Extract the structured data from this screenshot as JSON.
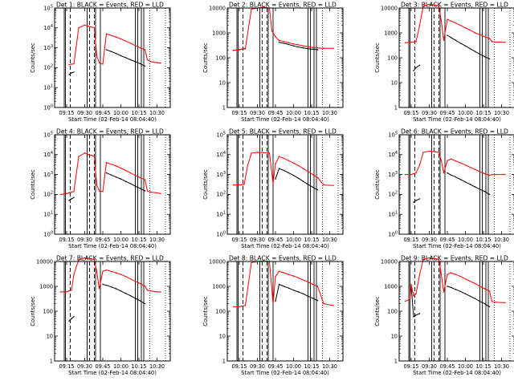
{
  "title_template": "Det {n}: BLACK = Events, RED = LLD",
  "title_prefix": "Det ",
  "title_suffix": ": BLACK = Events, RED = LLD",
  "xlabel": "Start Time (02-Feb-14 08:04:40)",
  "ylabel": "Counts/sec",
  "x_tick_labels": [
    "09:15",
    "09:30",
    "09:45",
    "10:00",
    "10:15",
    "10:30"
  ],
  "colors": {
    "events": "#000000",
    "lld": "#ff0000",
    "background": "#ffffff"
  },
  "chart_data": [
    {
      "type": "line",
      "detector": "1",
      "yscale": "log",
      "ylim": [
        1,
        100000
      ],
      "ytick_format": "exponent",
      "ytick_labels": [
        "10^0",
        "10^1",
        "10^2",
        "10^3",
        "10^4",
        "10^5"
      ],
      "x": [
        "09:10",
        "09:15",
        "09:17",
        "09:19",
        "09:21",
        "09:25",
        "09:30",
        "09:33",
        "09:36",
        "09:38",
        "09:40",
        "09:42",
        "09:45",
        "09:48",
        "09:52",
        "09:56",
        "10:00",
        "10:04",
        "10:08",
        "10:12",
        "10:16",
        "10:20",
        "10:22",
        "10:25",
        "10:30",
        "10:33"
      ],
      "series": [
        {
          "name": "BLACK = Events",
          "color": "#000000",
          "values": [
            null,
            null,
            45,
            55,
            60,
            null,
            null,
            null,
            null,
            null,
            null,
            null,
            null,
            800,
            650,
            520,
            400,
            320,
            250,
            200,
            160,
            120,
            null,
            null,
            null,
            null
          ]
        },
        {
          "name": "RED = LLD",
          "color": "#ff0000",
          "values": [
            null,
            null,
            140,
            150,
            155,
            10000,
            14000,
            12000,
            11000,
            10000,
            400,
            180,
            150,
            5000,
            4200,
            3500,
            2800,
            2200,
            1700,
            1300,
            1000,
            800,
            250,
            200,
            180,
            170
          ]
        }
      ]
    },
    {
      "type": "line",
      "detector": "2",
      "yscale": "log",
      "ylim": [
        1,
        10000
      ],
      "ytick_format": "plain",
      "ytick_labels": [
        "1",
        "10",
        "100",
        "1000",
        "10000"
      ],
      "x": [
        "09:10",
        "09:15",
        "09:17",
        "09:20",
        "09:25",
        "09:30",
        "09:35",
        "09:40",
        "09:42",
        "09:45",
        "09:48",
        "09:52",
        "09:56",
        "10:00",
        "10:04",
        "10:08",
        "10:12",
        "10:16",
        "10:20",
        "10:25",
        "10:33"
      ],
      "series": [
        {
          "name": "BLACK = Events",
          "color": "#000000",
          "values": [
            200,
            210,
            220,
            230,
            null,
            null,
            null,
            null,
            null,
            null,
            420,
            380,
            340,
            300,
            270,
            250,
            230,
            220,
            210,
            null,
            null
          ]
        },
        {
          "name": "RED = LLD",
          "color": "#ff0000",
          "values": [
            200,
            210,
            220,
            240,
            9000,
            10000,
            11000,
            10000,
            1200,
            700,
            500,
            450,
            400,
            360,
            330,
            300,
            280,
            260,
            250,
            240,
            240
          ]
        }
      ]
    },
    {
      "type": "line",
      "detector": "3",
      "yscale": "log",
      "ylim": [
        1,
        10000
      ],
      "ytick_format": "plain",
      "ytick_labels": [
        "1",
        "10",
        "100",
        "1000",
        "10000"
      ],
      "x": [
        "09:10",
        "09:15",
        "09:17",
        "09:19",
        "09:22",
        "09:25",
        "09:30",
        "09:35",
        "09:38",
        "09:40",
        "09:42",
        "09:45",
        "09:48",
        "09:52",
        "09:56",
        "10:00",
        "10:04",
        "10:08",
        "10:12",
        "10:16",
        "10:20",
        "10:22",
        "10:25",
        "10:33"
      ],
      "series": [
        {
          "name": "BLACK = Events",
          "color": "#000000",
          "values": [
            null,
            null,
            30,
            40,
            50,
            null,
            null,
            null,
            null,
            null,
            null,
            800,
            650,
            500,
            380,
            300,
            230,
            180,
            140,
            110,
            90,
            null,
            null,
            null
          ]
        },
        {
          "name": "RED = LLD",
          "color": "#ff0000",
          "values": [
            400,
            420,
            430,
            450,
            2000,
            12000,
            14000,
            13000,
            12000,
            3000,
            500,
            3500,
            3000,
            2500,
            2000,
            1600,
            1300,
            1000,
            850,
            700,
            600,
            450,
            430,
            420
          ]
        }
      ]
    },
    {
      "type": "line",
      "detector": "4",
      "yscale": "log",
      "ylim": [
        1,
        100000
      ],
      "ytick_format": "exponent",
      "ytick_labels": [
        "10^0",
        "10^1",
        "10^2",
        "10^3",
        "10^4",
        "10^5"
      ],
      "x": [
        "09:10",
        "09:15",
        "09:17",
        "09:19",
        "09:21",
        "09:25",
        "09:30",
        "09:33",
        "09:36",
        "09:38",
        "09:40",
        "09:42",
        "09:45",
        "09:48",
        "09:52",
        "09:56",
        "10:00",
        "10:04",
        "10:08",
        "10:12",
        "10:16",
        "10:20",
        "10:22",
        "10:25",
        "10:30",
        "10:33"
      ],
      "series": [
        {
          "name": "BLACK = Events",
          "color": "#000000",
          "values": [
            null,
            null,
            50,
            60,
            70,
            null,
            null,
            null,
            null,
            null,
            null,
            null,
            null,
            1200,
            950,
            750,
            600,
            450,
            350,
            260,
            200,
            150,
            null,
            null,
            null,
            null
          ]
        },
        {
          "name": "RED = LLD",
          "color": "#ff0000",
          "values": [
            100,
            110,
            120,
            130,
            140,
            8000,
            12000,
            10000,
            9000,
            8000,
            300,
            150,
            140,
            4000,
            3300,
            2700,
            2100,
            1600,
            1200,
            900,
            700,
            550,
            150,
            130,
            120,
            110
          ]
        }
      ]
    },
    {
      "type": "line",
      "detector": "5",
      "yscale": "log",
      "ylim": [
        1,
        100000
      ],
      "ytick_format": "exponent",
      "ytick_labels": [
        "10^0",
        "10^1",
        "10^2",
        "10^3",
        "10^4",
        "10^5"
      ],
      "x": [
        "09:10",
        "09:15",
        "09:17",
        "09:19",
        "09:22",
        "09:25",
        "09:30",
        "09:35",
        "09:40",
        "09:43",
        "09:45",
        "09:48",
        "09:52",
        "09:56",
        "10:00",
        "10:04",
        "10:08",
        "10:12",
        "10:16",
        "10:20",
        "10:25",
        "10:33"
      ],
      "series": [
        {
          "name": "BLACK = Events",
          "color": "#000000",
          "values": [
            null,
            null,
            null,
            null,
            null,
            null,
            null,
            null,
            null,
            null,
            600,
            2000,
            1600,
            1200,
            900,
            650,
            450,
            320,
            230,
            170,
            null,
            null
          ]
        },
        {
          "name": "RED = LLD",
          "color": "#ff0000",
          "values": [
            300,
            300,
            310,
            320,
            3000,
            12000,
            13000,
            12500,
            12000,
            350,
            3500,
            8000,
            6500,
            5000,
            3800,
            2800,
            2000,
            1400,
            1000,
            700,
            300,
            280
          ]
        }
      ]
    },
    {
      "type": "line",
      "detector": "6",
      "yscale": "log",
      "ylim": [
        1,
        100000
      ],
      "ytick_format": "exponent",
      "ytick_labels": [
        "10^0",
        "10^1",
        "10^2",
        "10^3",
        "10^4",
        "10^5"
      ],
      "x": [
        "09:10",
        "09:15",
        "09:17",
        "09:19",
        "09:22",
        "09:25",
        "09:30",
        "09:35",
        "09:38",
        "09:40",
        "09:42",
        "09:45",
        "09:48",
        "09:52",
        "09:56",
        "10:00",
        "10:04",
        "10:08",
        "10:12",
        "10:16",
        "10:20",
        "10:22",
        "10:25",
        "10:33"
      ],
      "series": [
        {
          "name": "BLACK = Events",
          "color": "#000000",
          "values": [
            null,
            null,
            40,
            50,
            60,
            null,
            null,
            null,
            null,
            null,
            null,
            1200,
            950,
            750,
            560,
            420,
            320,
            240,
            180,
            140,
            100,
            null,
            null,
            null
          ]
        },
        {
          "name": "RED = LLD",
          "color": "#ff0000",
          "values": [
            1000,
            1000,
            1100,
            1200,
            3000,
            13000,
            15000,
            14000,
            13000,
            5000,
            1200,
            5000,
            6000,
            4800,
            3800,
            3000,
            2300,
            1800,
            1400,
            1100,
            900,
            1000,
            1000,
            1000
          ]
        }
      ]
    },
    {
      "type": "line",
      "detector": "7",
      "yscale": "log",
      "ylim": [
        1,
        10000
      ],
      "ytick_format": "plain",
      "ytick_labels": [
        "1",
        "10",
        "100",
        "1000",
        "10000"
      ],
      "x": [
        "09:10",
        "09:15",
        "09:17",
        "09:19",
        "09:21",
        "09:25",
        "09:30",
        "09:35",
        "09:38",
        "09:40",
        "09:42",
        "09:45",
        "09:48",
        "09:52",
        "09:56",
        "10:00",
        "10:04",
        "10:08",
        "10:12",
        "10:16",
        "10:20",
        "10:22",
        "10:25",
        "10:30",
        "10:33"
      ],
      "series": [
        {
          "name": "BLACK = Events",
          "color": "#000000",
          "values": [
            null,
            null,
            40,
            50,
            60,
            null,
            null,
            null,
            null,
            null,
            null,
            1200,
            1100,
            950,
            800,
            650,
            520,
            420,
            330,
            260,
            200,
            null,
            null,
            null,
            null
          ]
        },
        {
          "name": "RED = LLD",
          "color": "#ff0000",
          "values": [
            600,
            600,
            650,
            700,
            3000,
            12000,
            14000,
            13000,
            12000,
            4000,
            800,
            4000,
            4500,
            4000,
            3500,
            3000,
            2500,
            2000,
            1600,
            1300,
            1000,
            700,
            650,
            600,
            600
          ]
        }
      ]
    },
    {
      "type": "line",
      "detector": "8",
      "yscale": "log",
      "ylim": [
        1,
        10000
      ],
      "ytick_format": "plain",
      "ytick_labels": [
        "1",
        "10",
        "100",
        "1000",
        "10000"
      ],
      "x": [
        "09:10",
        "09:15",
        "09:17",
        "09:20",
        "09:25",
        "09:30",
        "09:35",
        "09:40",
        "09:43",
        "09:45",
        "09:48",
        "09:52",
        "09:56",
        "10:00",
        "10:04",
        "10:08",
        "10:12",
        "10:16",
        "10:20",
        "10:25",
        "10:33"
      ],
      "series": [
        {
          "name": "BLACK = Events",
          "color": "#000000",
          "values": [
            null,
            null,
            null,
            null,
            null,
            null,
            null,
            null,
            null,
            250,
            1200,
            1000,
            850,
            700,
            600,
            500,
            400,
            330,
            270,
            null,
            null
          ]
        },
        {
          "name": "RED = LLD",
          "color": "#ff0000",
          "values": [
            150,
            150,
            160,
            170,
            9000,
            10000,
            10500,
            10000,
            200,
            2500,
            4000,
            3500,
            3000,
            2600,
            2200,
            1800,
            1500,
            1200,
            1000,
            200,
            170
          ]
        }
      ]
    },
    {
      "type": "line",
      "detector": "9",
      "yscale": "log",
      "ylim": [
        1,
        10000
      ],
      "ytick_format": "plain",
      "ytick_labels": [
        "1",
        "10",
        "100",
        "1000",
        "10000"
      ],
      "x": [
        "09:10",
        "09:14",
        "09:15",
        "09:17",
        "09:19",
        "09:22",
        "09:25",
        "09:30",
        "09:35",
        "09:38",
        "09:40",
        "09:42",
        "09:45",
        "09:48",
        "09:52",
        "09:56",
        "10:00",
        "10:04",
        "10:08",
        "10:12",
        "10:16",
        "10:20",
        "10:22",
        "10:25",
        "10:33"
      ],
      "series": [
        {
          "name": "BLACK = Events",
          "color": "#000000",
          "values": [
            null,
            null,
            1000,
            60,
            70,
            80,
            null,
            null,
            null,
            null,
            null,
            null,
            1000,
            900,
            750,
            620,
            500,
            400,
            320,
            250,
            200,
            150,
            null,
            null,
            null
          ]
        },
        {
          "name": "RED = LLD",
          "color": "#ff0000",
          "values": [
            250,
            300,
            1200,
            400,
            500,
            3000,
            12000,
            14000,
            13000,
            12000,
            3000,
            600,
            3000,
            3500,
            3000,
            2500,
            2000,
            1600,
            1300,
            1000,
            800,
            650,
            250,
            230,
            220
          ]
        }
      ]
    }
  ]
}
